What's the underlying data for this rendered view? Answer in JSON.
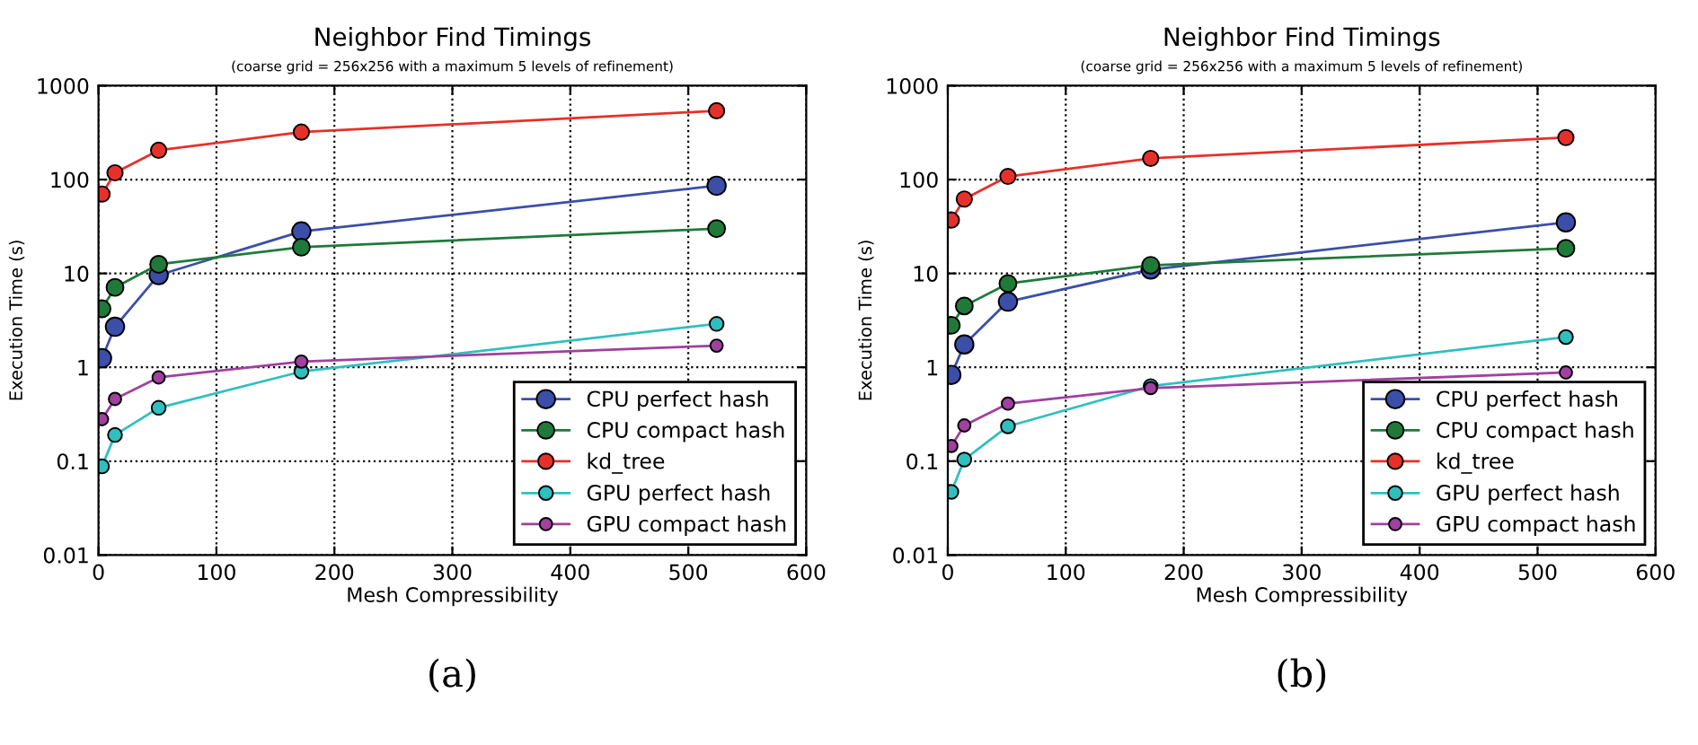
{
  "chart_data": [
    {
      "type": "line",
      "title": "Neighbor Find Timings",
      "subtitle": "(coarse grid = 256x256 with a maximum 5 levels of refinement)",
      "xlabel": "Mesh Compressibility",
      "ylabel": "Execution Time (s)",
      "annotations": [
        "(a)"
      ],
      "x": [
        3,
        14,
        51,
        172,
        524
      ],
      "series": [
        {
          "name": "CPU perfect hash",
          "color": "#3b4fa8",
          "values": [
            1.25,
            2.7,
            9.6,
            28,
            86
          ]
        },
        {
          "name": "CPU compact hash",
          "color": "#1f7a3a",
          "values": [
            4.2,
            7.1,
            12.5,
            19,
            30
          ]
        },
        {
          "name": "kd_tree",
          "color": "#e8302a",
          "values": [
            70,
            118,
            205,
            320,
            540
          ]
        },
        {
          "name": "GPU perfect hash",
          "color": "#2fbfbf",
          "values": [
            0.088,
            0.19,
            0.37,
            0.9,
            2.9
          ]
        },
        {
          "name": "GPU compact hash",
          "color": "#a040a0",
          "values": [
            0.28,
            0.46,
            0.78,
            1.15,
            1.7
          ]
        }
      ],
      "xlim": [
        0,
        600
      ],
      "xticks": [
        0,
        100,
        200,
        300,
        400,
        500,
        600
      ],
      "ylim": [
        0.01,
        1000
      ],
      "yticks": [
        0.01,
        0.1,
        1,
        10,
        100,
        1000
      ],
      "log": "y",
      "grid": true,
      "legend": "bottom right",
      "marker": "circle",
      "line_style": "solid"
    },
    {
      "type": "line",
      "title": "Neighbor Find Timings",
      "subtitle": "(coarse grid = 256x256 with a maximum 5 levels of refinement)",
      "xlabel": "Mesh Compressibility",
      "ylabel": "Execution Time (s)",
      "annotations": [
        "(b)"
      ],
      "x": [
        3,
        14,
        51,
        172,
        524
      ],
      "series": [
        {
          "name": "CPU perfect hash",
          "color": "#3b4fa8",
          "values": [
            0.83,
            1.75,
            5,
            11,
            35
          ]
        },
        {
          "name": "CPU compact hash",
          "color": "#1f7a3a",
          "values": [
            2.8,
            4.5,
            7.8,
            12.2,
            18.5
          ]
        },
        {
          "name": "kd_tree",
          "color": "#e8302a",
          "values": [
            37,
            62,
            108,
            168,
            280
          ]
        },
        {
          "name": "GPU perfect hash",
          "color": "#2fbfbf",
          "values": [
            0.047,
            0.104,
            0.235,
            0.63,
            2.1
          ]
        },
        {
          "name": "GPU compact hash",
          "color": "#a040a0",
          "values": [
            0.145,
            0.24,
            0.41,
            0.6,
            0.88
          ]
        }
      ],
      "xlim": [
        0,
        600
      ],
      "xticks": [
        0,
        100,
        200,
        300,
        400,
        500,
        600
      ],
      "ylim": [
        0.01,
        1000
      ],
      "yticks": [
        0.01,
        0.1,
        1,
        10,
        100,
        1000
      ],
      "log": "y",
      "grid": true,
      "legend": "bottom right",
      "marker": "circle",
      "line_style": "solid"
    }
  ]
}
